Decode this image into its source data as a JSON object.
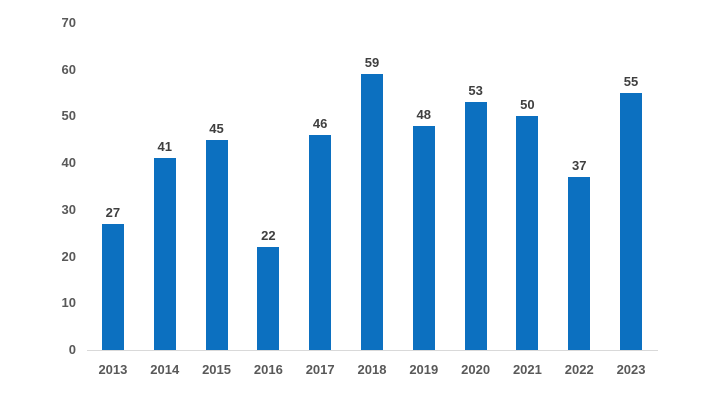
{
  "chart_data": {
    "type": "bar",
    "title": "",
    "xlabel": "",
    "ylabel": "",
    "categories": [
      "2013",
      "2014",
      "2015",
      "2016",
      "2017",
      "2018",
      "2019",
      "2020",
      "2021",
      "2022",
      "2023"
    ],
    "values": [
      27,
      41,
      45,
      22,
      46,
      59,
      48,
      53,
      50,
      37,
      55
    ],
    "ylim": [
      0,
      70
    ],
    "yticks": [
      0,
      10,
      20,
      30,
      40,
      50,
      60,
      70
    ],
    "data_labels_visible": true,
    "gridlines": false,
    "legend": false,
    "colors": {
      "bar": "#0c70c0",
      "axis_line": "#d9d9d9",
      "data_label": "#3f3f3f",
      "tick_label": "#595959",
      "background": "#ffffff"
    }
  }
}
